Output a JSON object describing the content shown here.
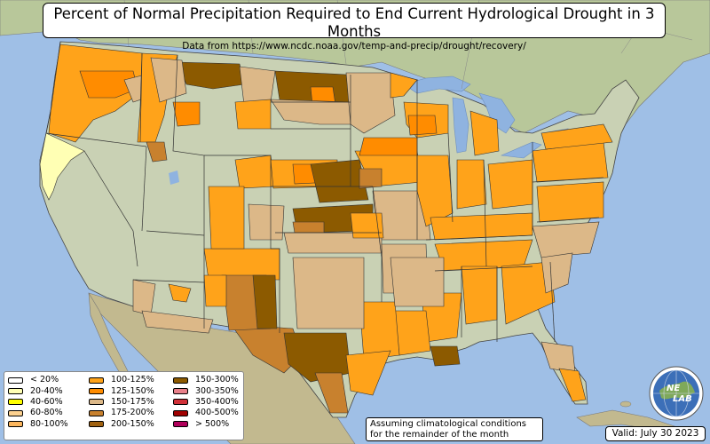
{
  "title": "Percent of Normal Precipitation Required to End Current Hydrological Drought in 3 Months",
  "subtitle": "Data from https://www.ncdc.noaa.gov/temp-and-precip/drought/recovery/",
  "legend": {
    "items": [
      {
        "label": "< 20%",
        "color": "#ffffff"
      },
      {
        "label": "20-40%",
        "color": "#ffffb4"
      },
      {
        "label": "40-60%",
        "color": "#ffff00"
      },
      {
        "label": "60-80%",
        "color": "#fbd08f"
      },
      {
        "label": "80-100%",
        "color": "#fcb65d"
      },
      {
        "label": "100-125%",
        "color": "#ffa31a"
      },
      {
        "label": "125-150%",
        "color": "#ff8c00"
      },
      {
        "label": "150-175%",
        "color": "#dcb888"
      },
      {
        "label": "175-200%",
        "color": "#c8812e"
      },
      {
        "label": "200-150%",
        "color": "#a0610f"
      },
      {
        "label": "150-300%",
        "color": "#8c5a00"
      },
      {
        "label": "300-350%",
        "color": "#e8808a"
      },
      {
        "label": "350-400%",
        "color": "#d03038"
      },
      {
        "label": "400-500%",
        "color": "#a00000"
      },
      {
        "label": "> 500%",
        "color": "#b0005a"
      }
    ]
  },
  "note": {
    "line1": "Assuming climatological conditions",
    "line2": "for the remainder of the month"
  },
  "valid": "Valid: July 30 2023",
  "logo": {
    "text_top": "NE",
    "text_bottom": "LAB"
  },
  "colors": {
    "ocean": "#9fbfe6",
    "land_us": "#c9d1b4",
    "land_foreign": "#b7c79a",
    "lake": "#8fb3e0"
  },
  "icons": [
    "globe-logo-icon"
  ]
}
